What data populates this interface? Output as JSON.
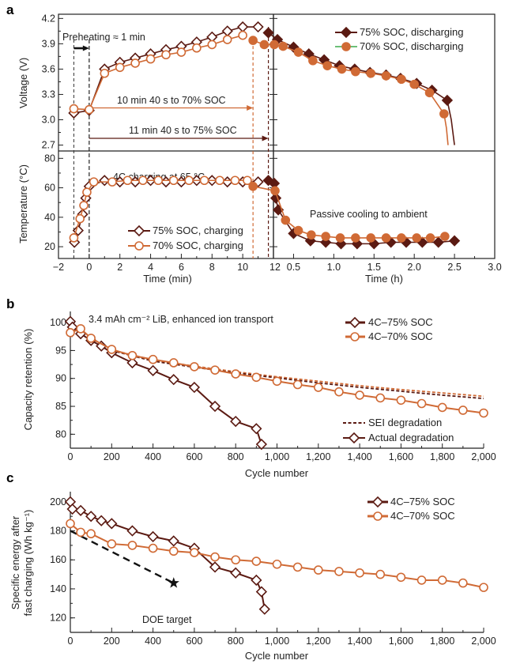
{
  "figure": {
    "panel_labels": [
      "a",
      "b",
      "c"
    ]
  },
  "colors": {
    "soc75": "#5b1a12",
    "soc70": "#d06a35",
    "legend_green": "#3aaa4a",
    "black": "#111111"
  },
  "panel_a": {
    "x_title_min": "Time (min)",
    "x_title_h": "Time (h)",
    "preheating": "Preheating ≈ 1 min",
    "arrow70": "10 min 40 s to 70% SOC",
    "arrow75": "11 min 40 s to 75% SOC",
    "charging_note": "4C charging at 65 °C",
    "cooling_note": "Passive cooling to ambient",
    "legend_top": [
      "75% SOC, discharging",
      "70% SOC, discharging"
    ],
    "legend_bottom": [
      "75% SOC, charging",
      "70% SOC, charging"
    ]
  },
  "panel_b": {
    "note": "3.4 mAh cm⁻² LiB, enhanced ion transport",
    "legend": [
      "4C–75% SOC",
      "4C–70% SOC"
    ],
    "legend2": [
      "SEI degradation",
      "Actual degradation"
    ]
  },
  "panel_c": {
    "legend": [
      "4C–75% SOC",
      "4C–70% SOC"
    ],
    "doe_label": "DOE target"
  },
  "chart_data": [
    {
      "id": "a-voltage",
      "type": "line",
      "ylabel": "Voltage (V)",
      "xlim_min": [
        -2,
        12
      ],
      "xlim_h": [
        0.25,
        3.0
      ],
      "ylim": [
        2.63,
        4.25
      ],
      "x_ticks_min": [
        "-2",
        "0",
        "2",
        "4",
        "6",
        "8",
        "10",
        "12"
      ],
      "x_ticks_h": [
        "0.5",
        "1.0",
        "1.5",
        "2.0",
        "2.5",
        "3.0"
      ],
      "y_ticks": [
        "2.7",
        "3.0",
        "3.3",
        "3.6",
        "3.9",
        "4.2"
      ],
      "series": [
        {
          "name": "75% SOC, charging",
          "marker": "open-diamond",
          "color": "#5b1a12",
          "points_min": [
            [
              -1,
              3.08
            ],
            [
              0,
              3.11
            ],
            [
              1,
              3.6
            ],
            [
              2,
              3.68
            ],
            [
              3,
              3.73
            ],
            [
              4,
              3.78
            ],
            [
              5,
              3.83
            ],
            [
              6,
              3.87
            ],
            [
              7,
              3.92
            ],
            [
              8,
              3.98
            ],
            [
              9,
              4.05
            ],
            [
              10,
              4.1
            ],
            [
              11,
              4.1
            ]
          ]
        },
        {
          "name": "70% SOC, charging",
          "marker": "open-circle",
          "color": "#d06a35",
          "points_min": [
            [
              -1,
              3.13
            ],
            [
              0,
              3.12
            ],
            [
              1,
              3.55
            ],
            [
              2,
              3.62
            ],
            [
              3,
              3.67
            ],
            [
              4,
              3.72
            ],
            [
              5,
              3.77
            ],
            [
              6,
              3.8
            ],
            [
              7,
              3.85
            ],
            [
              8,
              3.89
            ],
            [
              9,
              3.95
            ],
            [
              10,
              4.0
            ]
          ]
        },
        {
          "name": "75% SOC, discharging",
          "marker": "filled-diamond",
          "color": "#5b1a12",
          "points_min": [
            [
              11.67,
              4.03
            ]
          ],
          "points_h": [
            [
              0.3,
              3.95
            ],
            [
              0.5,
              3.86
            ],
            [
              0.69,
              3.78
            ],
            [
              0.88,
              3.71
            ],
            [
              1.07,
              3.64
            ],
            [
              1.26,
              3.6
            ],
            [
              1.45,
              3.56
            ],
            [
              1.65,
              3.53
            ],
            [
              1.83,
              3.49
            ],
            [
              2.03,
              3.43
            ],
            [
              2.22,
              3.35
            ],
            [
              2.41,
              3.23
            ]
          ],
          "tail_h": [
            [
              2.46,
              3.0
            ],
            [
              2.5,
              2.7
            ]
          ]
        },
        {
          "name": "70% SOC, discharging",
          "marker": "filled-circle",
          "color": "#d06a35",
          "points_min": [
            [
              10.67,
              3.94
            ],
            [
              11.4,
              3.89
            ]
          ],
          "points_h": [
            [
              0.26,
              3.89
            ],
            [
              0.37,
              3.87
            ],
            [
              0.56,
              3.8
            ],
            [
              0.74,
              3.7
            ],
            [
              0.92,
              3.64
            ],
            [
              1.1,
              3.6
            ],
            [
              1.27,
              3.57
            ],
            [
              1.46,
              3.55
            ],
            [
              1.65,
              3.52
            ],
            [
              1.84,
              3.48
            ],
            [
              2.0,
              3.42
            ],
            [
              2.19,
              3.32
            ],
            [
              2.37,
              3.07
            ]
          ],
          "tail_h": [
            [
              2.4,
              2.9
            ],
            [
              2.42,
              2.7
            ]
          ]
        }
      ]
    },
    {
      "id": "a-temperature",
      "type": "line",
      "ylabel": "Temperature (°C)",
      "xlim_min": [
        -2,
        12
      ],
      "xlim_h": [
        0.25,
        3.0
      ],
      "ylim": [
        12,
        85
      ],
      "y_ticks": [
        "20",
        "40",
        "60",
        "80"
      ],
      "series": [
        {
          "name": "75% SOC, charging",
          "marker": "open-diamond",
          "color": "#5b1a12",
          "points_min": [
            [
              -0.96,
              23
            ],
            [
              -0.72,
              31
            ],
            [
              -0.43,
              42
            ],
            [
              -0.22,
              53
            ],
            [
              0,
              61
            ],
            [
              1,
              65
            ],
            [
              2,
              64
            ],
            [
              3,
              64
            ],
            [
              4,
              65
            ],
            [
              5,
              64
            ],
            [
              6,
              64
            ],
            [
              7,
              65
            ],
            [
              8,
              65
            ],
            [
              9,
              64
            ],
            [
              10,
              64
            ],
            [
              11,
              64
            ]
          ]
        },
        {
          "name": "70% SOC, charging",
          "marker": "open-circle",
          "color": "#d06a35",
          "points_min": [
            [
              -1,
              26
            ],
            [
              -0.6,
              39
            ],
            [
              -0.35,
              48
            ],
            [
              -0.15,
              57
            ],
            [
              0.3,
              64
            ],
            [
              1.5,
              64
            ],
            [
              2.5,
              65
            ],
            [
              3.5,
              65
            ],
            [
              4.5,
              65
            ],
            [
              5.5,
              65
            ],
            [
              6.5,
              65
            ],
            [
              7.5,
              65
            ],
            [
              8.5,
              65
            ],
            [
              9.5,
              65
            ],
            [
              10.3,
              65
            ]
          ]
        },
        {
          "name": "75% SOC, discharging",
          "marker": "filled-diamond",
          "color": "#5b1a12",
          "points_min": [
            [
              11.67,
              65
            ]
          ],
          "points_h": [
            [
              0.26,
              63
            ],
            [
              0.28,
              53
            ],
            [
              0.31,
              45
            ],
            [
              0.5,
              29
            ],
            [
              0.71,
              24
            ],
            [
              0.9,
              23
            ],
            [
              1.09,
              22
            ],
            [
              1.29,
              22
            ],
            [
              1.5,
              22
            ],
            [
              1.71,
              23
            ],
            [
              1.9,
              23
            ],
            [
              2.1,
              23
            ],
            [
              2.3,
              23
            ],
            [
              2.5,
              24
            ]
          ]
        },
        {
          "name": "70% SOC, discharging",
          "marker": "filled-circle",
          "color": "#d06a35",
          "points_min": [
            [
              10.67,
              61
            ]
          ],
          "points_h": [
            [
              0.27,
              58
            ],
            [
              0.4,
              38
            ],
            [
              0.56,
              31
            ],
            [
              0.72,
              28
            ],
            [
              0.9,
              27
            ],
            [
              1.08,
              26
            ],
            [
              1.27,
              26
            ],
            [
              1.46,
              26
            ],
            [
              1.65,
              26
            ],
            [
              1.84,
              26
            ],
            [
              2.03,
              26
            ],
            [
              2.2,
              26
            ],
            [
              2.38,
              27
            ]
          ]
        }
      ]
    },
    {
      "id": "b",
      "type": "line",
      "xlabel": "Cycle number",
      "ylabel": "Capacity retention (%)",
      "xlim": [
        0,
        2000
      ],
      "ylim": [
        77.5,
        102
      ],
      "x_ticks": [
        "0",
        "200",
        "400",
        "600",
        "800",
        "1,000",
        "1,200",
        "1,400",
        "1,600",
        "1,800",
        "2,000"
      ],
      "y_ticks": [
        "80",
        "85",
        "90",
        "95",
        "100"
      ],
      "series": [
        {
          "name": "4C–75% SOC",
          "marker": "open-diamond",
          "color": "#5b1a12",
          "points": [
            [
              0,
              100.2
            ],
            [
              10,
              99.2
            ],
            [
              50,
              98
            ],
            [
              100,
              96.8
            ],
            [
              150,
              95.8
            ],
            [
              200,
              94.6
            ],
            [
              300,
              92.8
            ],
            [
              400,
              91.4
            ],
            [
              500,
              89.8
            ],
            [
              600,
              88.4
            ],
            [
              700,
              85
            ],
            [
              800,
              82.3
            ],
            [
              900,
              81
            ],
            [
              925,
              78.2
            ]
          ]
        },
        {
          "name": "4C–70% SOC",
          "marker": "open-circle",
          "color": "#d06a35",
          "points": [
            [
              0,
              98.2
            ],
            [
              50,
              98.9
            ],
            [
              100,
              97.2
            ],
            [
              200,
              95.2
            ],
            [
              300,
              94.1
            ],
            [
              400,
              93.4
            ],
            [
              500,
              92.8
            ],
            [
              600,
              92.1
            ],
            [
              700,
              91.5
            ],
            [
              800,
              90.8
            ],
            [
              900,
              90.2
            ],
            [
              1000,
              89.5
            ],
            [
              1100,
              88.9
            ],
            [
              1200,
              88.4
            ],
            [
              1300,
              87.6
            ],
            [
              1400,
              87.0
            ],
            [
              1500,
              86.5
            ],
            [
              1600,
              86.1
            ],
            [
              1700,
              85.5
            ],
            [
              1800,
              84.8
            ],
            [
              1900,
              84.3
            ],
            [
              2000,
              83.8
            ]
          ]
        }
      ],
      "sei_curves": [
        {
          "color": "#d06a35",
          "points": [
            [
              200,
              95.1
            ],
            [
              400,
              93.3
            ],
            [
              600,
              92.2
            ],
            [
              800,
              91.2
            ],
            [
              1000,
              90.3
            ],
            [
              1200,
              89.5
            ],
            [
              1400,
              88.7
            ],
            [
              1600,
              88.0
            ],
            [
              1800,
              87.4
            ],
            [
              2000,
              86.8
            ]
          ]
        },
        {
          "color": "#5b1a12",
          "points": [
            [
              200,
              95
            ],
            [
              400,
              93.1
            ],
            [
              600,
              92
            ],
            [
              800,
              91
            ],
            [
              1000,
              90.1
            ],
            [
              1200,
              89.2
            ],
            [
              1400,
              88.4
            ],
            [
              1600,
              87.7
            ],
            [
              1800,
              87
            ],
            [
              2000,
              86.4
            ]
          ]
        }
      ]
    },
    {
      "id": "c",
      "type": "line",
      "xlabel": "Cycle number",
      "ylabel": [
        "Specific energy after",
        "fast charging (Wh kg⁻¹)"
      ],
      "xlim": [
        0,
        2000
      ],
      "ylim": [
        110,
        207
      ],
      "x_ticks": [
        "0",
        "200",
        "400",
        "600",
        "800",
        "1,000",
        "1,200",
        "1,400",
        "1,600",
        "1,800",
        "2,000"
      ],
      "y_ticks": [
        "120",
        "140",
        "160",
        "180",
        "200"
      ],
      "series": [
        {
          "name": "4C–75% SOC",
          "marker": "open-diamond",
          "color": "#5b1a12",
          "points": [
            [
              0,
              200
            ],
            [
              10,
              195
            ],
            [
              50,
              194
            ],
            [
              100,
              190
            ],
            [
              150,
              187
            ],
            [
              200,
              185
            ],
            [
              300,
              180
            ],
            [
              400,
              176
            ],
            [
              500,
              173
            ],
            [
              600,
              168
            ],
            [
              700,
              155
            ],
            [
              800,
              151
            ],
            [
              900,
              146
            ],
            [
              925,
              138
            ],
            [
              940,
              126
            ]
          ]
        },
        {
          "name": "4C–70% SOC",
          "marker": "open-circle",
          "color": "#d06a35",
          "points": [
            [
              0,
              185
            ],
            [
              50,
              179
            ],
            [
              100,
              178
            ],
            [
              200,
              171
            ],
            [
              300,
              170
            ],
            [
              400,
              168
            ],
            [
              500,
              166
            ],
            [
              600,
              165
            ],
            [
              700,
              162
            ],
            [
              800,
              160
            ],
            [
              900,
              159
            ],
            [
              1000,
              157
            ],
            [
              1100,
              155
            ],
            [
              1200,
              153
            ],
            [
              1300,
              152
            ],
            [
              1400,
              151
            ],
            [
              1500,
              150
            ],
            [
              1600,
              148
            ],
            [
              1700,
              146
            ],
            [
              1800,
              146
            ],
            [
              1900,
              144
            ],
            [
              2000,
              141
            ]
          ]
        }
      ],
      "doe_target": {
        "line": [
          [
            0,
            180
          ],
          [
            500,
            144
          ]
        ],
        "star": [
          500,
          144
        ]
      }
    }
  ]
}
